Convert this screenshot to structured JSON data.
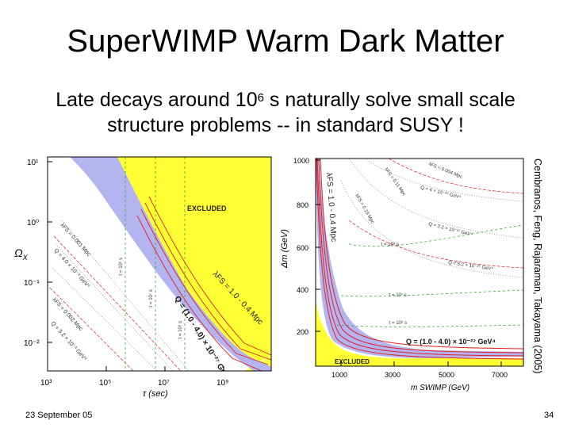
{
  "slide": {
    "title": "SuperWIMP Warm Dark Matter",
    "subtitle_line1_pre": "Late decays around 10",
    "subtitle_exp": "6",
    "subtitle_line1_post": " s naturally solve small scale",
    "subtitle_line2": "structure problems -- in standard SUSY !",
    "credit": "Cembranos, Feng, Rajaraman, Takayama (2005)",
    "footer_date": "23 September 05",
    "page_number": "34"
  },
  "left_plot": {
    "region_label": "EXCLUDED",
    "y_axis_label": "Ω",
    "y_axis_sub": "X",
    "x_axis_label": "τ (sec)",
    "y_ticks": [
      "10¹",
      "10⁰",
      "10⁻¹",
      "10⁻²"
    ],
    "x_ticks": [
      "10³",
      "10⁵",
      "10⁷",
      "10⁹"
    ],
    "band_label": "λFS = 1.0 - 0.4 Mpc",
    "q_label": "Q = (1.0 - 4.0) × 10⁻²⁷ GeV⁴",
    "line_labels": [
      "λFS = 0.001 Mpc",
      "Q = 4.0 × 10⁻³ GeV⁴",
      "λFS = 0.002 Mpc",
      "Q = 3.2 × 10⁻³ GeV⁴"
    ],
    "tau_labels": [
      "τ = 10⁶ s",
      "τ = 10⁷ s",
      "τ = 10⁸ s"
    ],
    "colors": {
      "excluded": "#ffff33",
      "band": "#b4b4f0",
      "q_lines": "#e02020",
      "tau_lines": "#20a020",
      "lambda_lines": "#707070"
    }
  },
  "right_plot": {
    "region_label": "EXCLUDED",
    "y_axis_label": "Δm (GeV)",
    "x_axis_label": "m SWIMP (GeV)",
    "y_ticks": [
      "1000",
      "800",
      "600",
      "400",
      "200"
    ],
    "x_ticks": [
      "1000",
      "3000",
      "5000",
      "7000"
    ],
    "band_label": "λFS = 1.0 - 0.4 Mpc",
    "q_label": "Q = (1.0 - 4.0) × 10⁻²⁷ GeV⁴",
    "line_labels": [
      "λFS = 0.004 Mpc",
      "λFS = 0.11 Mpc",
      "λFS = 0.19 Mpc",
      "Q = 4 × 10⁻²⁵ GeV⁴",
      "Q = 3.2 × 10⁻²⁷ GeV⁴",
      "Q = 5.2 × 10⁻²⁵ GeV⁴"
    ],
    "tau_labels": [
      "τ = 10⁵ s",
      "τ = 10⁷ s",
      "τ = 10⁸ s"
    ],
    "colors": {
      "excluded": "#ffff33",
      "band": "#b4b4f0",
      "q_lines": "#e02020",
      "tau_lines": "#20a020",
      "lambda_lines": "#707070"
    }
  }
}
